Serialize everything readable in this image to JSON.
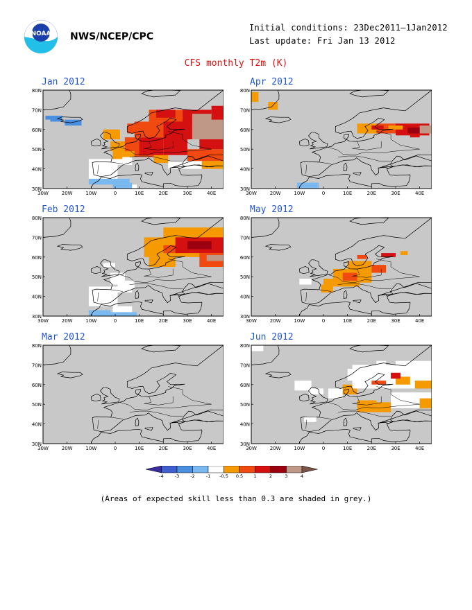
{
  "header": {
    "org": "NWS/NCEP/CPC",
    "logo_text": "NOAA",
    "initial_conditions": "Initial conditions: 23Dec2011—1Jan2012",
    "last_update": "Last update: Fri Jan 13 2012",
    "title": "CFS monthly T2m (K)"
  },
  "axes": {
    "lat_labels": [
      "80N",
      "70N",
      "60N",
      "50N",
      "40N",
      "30N"
    ],
    "lon_labels": [
      "30W",
      "20W",
      "10W",
      "0",
      "10E",
      "20E",
      "30E",
      "40E"
    ]
  },
  "panels": [
    {
      "id": "jan",
      "title": "Jan 2012"
    },
    {
      "id": "apr",
      "title": "Apr 2012"
    },
    {
      "id": "feb",
      "title": "Feb 2012"
    },
    {
      "id": "may",
      "title": "May 2012"
    },
    {
      "id": "mar",
      "title": "Mar 2012"
    },
    {
      "id": "jun",
      "title": "Jun 2012"
    }
  ],
  "colorbar": {
    "labels": [
      "-4",
      "-3",
      "-2",
      "-1",
      "-0.5",
      "0.5",
      "1",
      "2",
      "3",
      "4"
    ],
    "colors": [
      "#3a2ca0",
      "#3f5fd0",
      "#4a8ee0",
      "#7ab8f0",
      "#ffffff",
      "#f59a00",
      "#f04a10",
      "#d41010",
      "#9a0010",
      "#c09888",
      "#7a5448"
    ]
  },
  "colors": {
    "ocean": "#c8c8c8",
    "title": "#dd1111",
    "panel_title": "#2255cc"
  },
  "note": "(Areas of expected skill less than 0.3 are shaded in grey.)"
}
